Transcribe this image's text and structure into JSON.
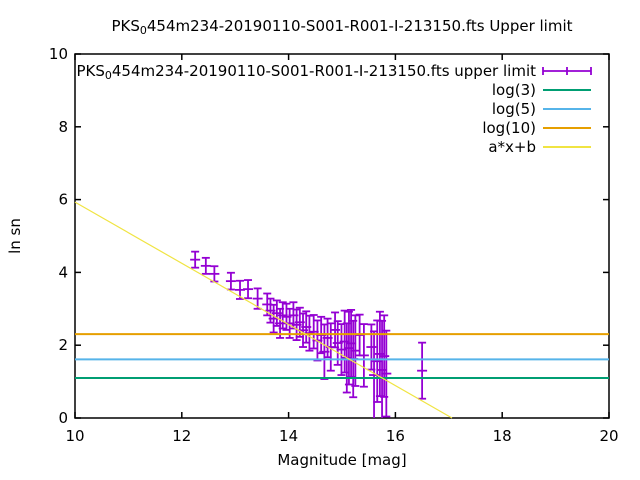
{
  "window": {
    "background": "#ffffff",
    "text_color": "#000000"
  },
  "chart_data": {
    "type": "scatter",
    "title_parts": {
      "prefix": "PKS",
      "sub": "0",
      "rest": "454m234-20190110-S001-R001-I-213150.fts Upper limit"
    },
    "xlabel": "Magnitude [mag]",
    "ylabel": "ln sn",
    "grid": false,
    "legend_position": "top-right-inside",
    "x_axis": {
      "min": 10,
      "max": 20,
      "tick_values": [
        10,
        12,
        14,
        16,
        18,
        20
      ],
      "tick_labels": [
        "10",
        "12",
        "14",
        "16",
        "18",
        "20"
      ]
    },
    "y_axis": {
      "min": 0,
      "max": 10,
      "tick_values": [
        0,
        2,
        4,
        6,
        8,
        10
      ],
      "tick_labels": [
        "0",
        "2",
        "4",
        "6",
        "8",
        "10"
      ]
    },
    "series": [
      {
        "key": "upper-limit-points",
        "type": "errorbars",
        "color": "#9400d3",
        "name_parts": {
          "prefix": "PKS",
          "sub": "0",
          "rest": "454m234-20190110-S001-R001-I-213150.fts upper limit"
        },
        "points": [
          [
            12.25,
            4.35,
            0.22
          ],
          [
            12.45,
            4.18,
            0.22
          ],
          [
            12.61,
            3.96,
            0.21
          ],
          [
            12.92,
            3.76,
            0.23
          ],
          [
            13.09,
            3.52,
            0.25
          ],
          [
            13.24,
            3.54,
            0.25
          ],
          [
            13.42,
            3.28,
            0.28
          ],
          [
            13.6,
            3.12,
            0.3
          ],
          [
            13.66,
            2.95,
            0.33
          ],
          [
            13.72,
            2.73,
            0.38
          ],
          [
            13.78,
            2.88,
            0.35
          ],
          [
            13.84,
            2.6,
            0.4
          ],
          [
            13.89,
            2.82,
            0.36
          ],
          [
            13.96,
            2.78,
            0.36
          ],
          [
            14.02,
            2.6,
            0.4
          ],
          [
            14.09,
            2.82,
            0.36
          ],
          [
            14.15,
            2.56,
            0.42
          ],
          [
            14.21,
            2.63,
            0.4
          ],
          [
            14.27,
            2.41,
            0.46
          ],
          [
            14.33,
            2.5,
            0.43
          ],
          [
            14.39,
            2.33,
            0.48
          ],
          [
            14.47,
            2.37,
            0.46
          ],
          [
            14.54,
            2.13,
            0.55
          ],
          [
            14.61,
            2.28,
            0.5
          ],
          [
            14.67,
            1.82,
            0.75
          ],
          [
            14.73,
            2.2,
            0.53
          ],
          [
            14.79,
            1.95,
            0.65
          ],
          [
            14.87,
            2.42,
            0.48
          ],
          [
            14.92,
            2.06,
            0.6
          ],
          [
            14.99,
            1.88,
            0.7
          ],
          [
            15.05,
            2.1,
            0.85
          ],
          [
            15.09,
            1.65,
            0.95
          ],
          [
            15.13,
            1.92,
            1.0
          ],
          [
            15.17,
            2.05,
            0.92
          ],
          [
            15.21,
            1.62,
            1.05
          ],
          [
            15.25,
            1.85,
            0.97
          ],
          [
            15.33,
            2.28,
            0.56
          ],
          [
            15.41,
            1.72,
            0.86
          ],
          [
            15.55,
            1.95,
            0.62
          ],
          [
            15.6,
            1.18,
            1.2
          ],
          [
            15.66,
            1.56,
            1.12
          ],
          [
            15.71,
            1.76,
            1.16
          ],
          [
            15.75,
            1.32,
            1.35
          ],
          [
            15.79,
            1.7,
            1.12
          ],
          [
            15.83,
            1.22,
            1.18
          ],
          [
            16.5,
            1.3,
            0.77
          ]
        ]
      },
      {
        "key": "log3",
        "type": "hline",
        "name": "log(3)",
        "color": "#009e73",
        "value": 1.0986
      },
      {
        "key": "log5",
        "type": "hline",
        "name": "log(5)",
        "color": "#56b4e9",
        "value": 1.6094
      },
      {
        "key": "log10",
        "type": "hline",
        "name": "log(10)",
        "color": "#e69f00",
        "value": 2.3026
      },
      {
        "key": "fit",
        "type": "line",
        "name": "a*x+b",
        "color": "#f0e442",
        "a": -0.84,
        "b": 14.33
      }
    ]
  }
}
